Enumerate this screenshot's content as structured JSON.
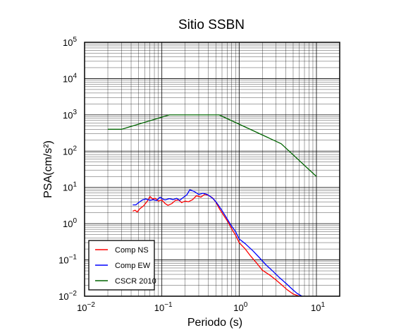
{
  "chart_data": {
    "type": "line",
    "title": "Sitio SSBN",
    "xlabel": "Periodo (s)",
    "ylabel": "PSA(cm/s²)",
    "xscale": "log",
    "yscale": "log",
    "xlim": [
      0.01,
      20
    ],
    "ylim": [
      0.01,
      100000
    ],
    "grid": true,
    "legend_position": "bottom-left",
    "x_ticks": [
      {
        "base": "10",
        "exp": "−2"
      },
      {
        "base": "10",
        "exp": "−1"
      },
      {
        "base": "10",
        "exp": "0"
      },
      {
        "base": "10",
        "exp": "1"
      }
    ],
    "y_ticks": [
      {
        "base": "10",
        "exp": "−2"
      },
      {
        "base": "10",
        "exp": "−1"
      },
      {
        "base": "10",
        "exp": "0"
      },
      {
        "base": "10",
        "exp": "1"
      },
      {
        "base": "10",
        "exp": "2"
      },
      {
        "base": "10",
        "exp": "3"
      },
      {
        "base": "10",
        "exp": "4"
      },
      {
        "base": "10",
        "exp": "5"
      }
    ],
    "series": [
      {
        "name": "Comp NS",
        "color": "#ff0000",
        "points": [
          [
            0.042,
            2.2
          ],
          [
            0.045,
            2.35
          ],
          [
            0.048,
            2.1
          ],
          [
            0.052,
            2.6
          ],
          [
            0.058,
            3.1
          ],
          [
            0.065,
            4.2
          ],
          [
            0.07,
            5.6
          ],
          [
            0.076,
            4.8
          ],
          [
            0.082,
            5.0
          ],
          [
            0.09,
            4.2
          ],
          [
            0.1,
            4.5
          ],
          [
            0.11,
            3.6
          ],
          [
            0.12,
            3.2
          ],
          [
            0.135,
            3.6
          ],
          [
            0.15,
            4.4
          ],
          [
            0.165,
            4.5
          ],
          [
            0.18,
            3.8
          ],
          [
            0.2,
            4.2
          ],
          [
            0.22,
            4.0
          ],
          [
            0.25,
            4.6
          ],
          [
            0.28,
            5.9
          ],
          [
            0.32,
            5.4
          ],
          [
            0.36,
            6.5
          ],
          [
            0.4,
            6.0
          ],
          [
            0.45,
            5.2
          ],
          [
            0.5,
            3.9
          ],
          [
            0.56,
            2.5
          ],
          [
            0.63,
            1.7
          ],
          [
            0.72,
            1.1
          ],
          [
            0.8,
            0.72
          ],
          [
            0.9,
            0.48
          ],
          [
            1.0,
            0.3
          ],
          [
            1.2,
            0.2
          ],
          [
            1.4,
            0.13
          ],
          [
            1.7,
            0.08
          ],
          [
            2.0,
            0.052
          ],
          [
            2.5,
            0.038
          ],
          [
            3.0,
            0.028
          ],
          [
            3.6,
            0.02
          ],
          [
            4.2,
            0.015
          ],
          [
            5.0,
            0.0115
          ],
          [
            6.0,
            0.01
          ]
        ]
      },
      {
        "name": "Comp EW",
        "color": "#0000ff",
        "points": [
          [
            0.042,
            3.3
          ],
          [
            0.046,
            3.3
          ],
          [
            0.05,
            3.8
          ],
          [
            0.056,
            4.5
          ],
          [
            0.062,
            4.8
          ],
          [
            0.07,
            4.4
          ],
          [
            0.078,
            4.6
          ],
          [
            0.085,
            4.3
          ],
          [
            0.095,
            5.4
          ],
          [
            0.1,
            4.9
          ],
          [
            0.11,
            4.5
          ],
          [
            0.125,
            4.9
          ],
          [
            0.14,
            4.6
          ],
          [
            0.155,
            5.0
          ],
          [
            0.17,
            4.4
          ],
          [
            0.19,
            5.3
          ],
          [
            0.21,
            6.2
          ],
          [
            0.23,
            8.6
          ],
          [
            0.26,
            7.8
          ],
          [
            0.3,
            6.4
          ],
          [
            0.34,
            6.9
          ],
          [
            0.38,
            6.5
          ],
          [
            0.42,
            5.7
          ],
          [
            0.47,
            4.7
          ],
          [
            0.53,
            3.4
          ],
          [
            0.6,
            2.3
          ],
          [
            0.68,
            1.5
          ],
          [
            0.78,
            0.92
          ],
          [
            0.9,
            0.6
          ],
          [
            1.0,
            0.38
          ],
          [
            1.2,
            0.28
          ],
          [
            1.5,
            0.18
          ],
          [
            1.8,
            0.12
          ],
          [
            2.2,
            0.075
          ],
          [
            2.7,
            0.05
          ],
          [
            3.3,
            0.033
          ],
          [
            4.0,
            0.023
          ],
          [
            4.8,
            0.016
          ],
          [
            5.6,
            0.012
          ],
          [
            6.5,
            0.01
          ]
        ]
      },
      {
        "name": "CSCR 2010",
        "color": "#006400",
        "points": [
          [
            0.02,
            400
          ],
          [
            0.03,
            400
          ],
          [
            0.125,
            1000
          ],
          [
            0.55,
            1000
          ],
          [
            3.5,
            160
          ],
          [
            10.0,
            20
          ]
        ]
      }
    ]
  }
}
